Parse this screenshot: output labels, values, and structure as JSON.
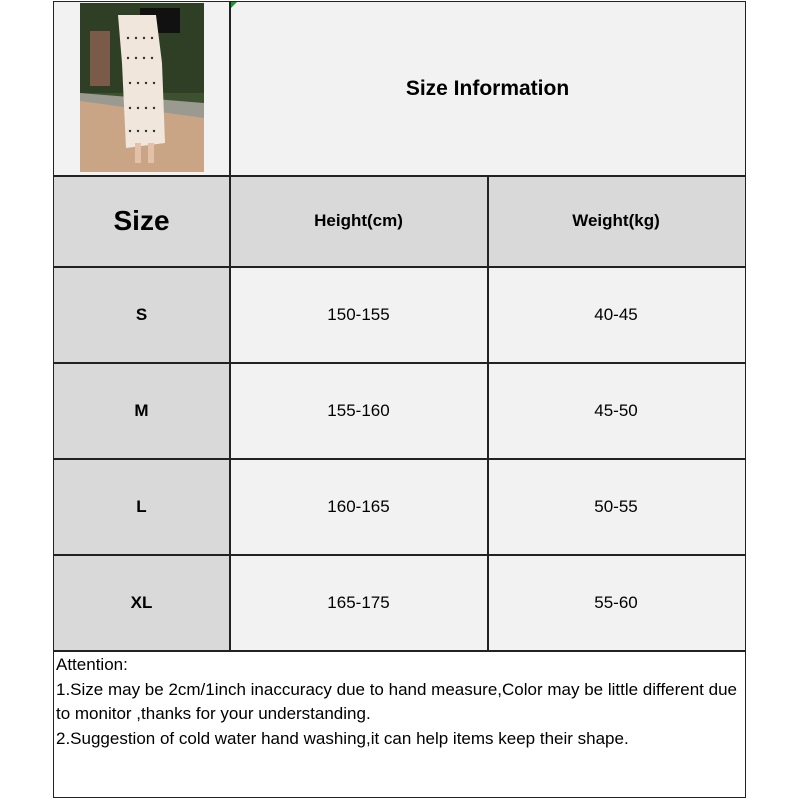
{
  "title": "Size Information",
  "headers": [
    "Size",
    "Height(cm)",
    "Weight(kg)"
  ],
  "rows": [
    [
      "S",
      "150-155",
      "40-45"
    ],
    [
      "M",
      "155-160",
      "45-50"
    ],
    [
      "L",
      "160-165",
      "50-55"
    ],
    [
      "XL",
      "165-175",
      "55-60"
    ]
  ],
  "note": {
    "heading": "Attention:",
    "lines": [
      "1.Size may be 2cm/1inch inaccuracy due to hand measure,Color may be little different due to monitor ,thanks for your understanding.",
      "2.Suggestion of cold water hand washing,it can help items keep their shape."
    ]
  }
}
